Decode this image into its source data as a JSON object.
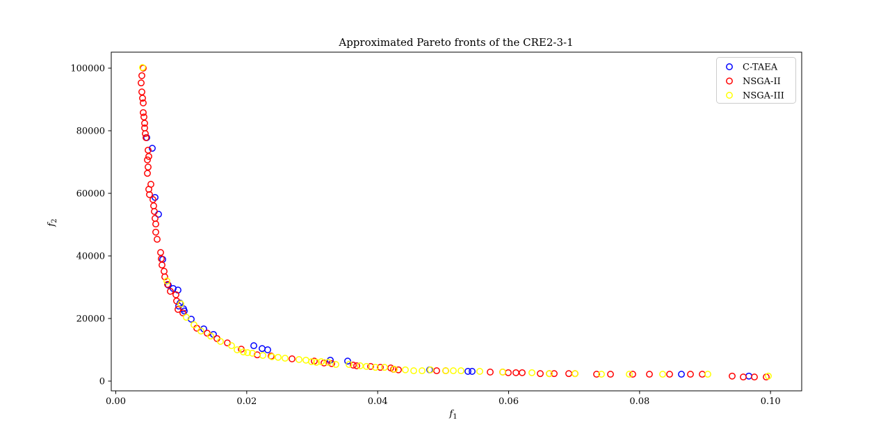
{
  "figure": {
    "title": "Approximated Pareto fronts of the CRE2-3-1",
    "x_axis": {
      "label_base": "f",
      "label_sub": "1",
      "ticks": [
        {
          "value": 0.0,
          "label": "0.00"
        },
        {
          "value": 0.02,
          "label": "0.02"
        },
        {
          "value": 0.04,
          "label": "0.04"
        },
        {
          "value": 0.06,
          "label": "0.06"
        },
        {
          "value": 0.08,
          "label": "0.08"
        },
        {
          "value": 0.1,
          "label": "0.10"
        }
      ]
    },
    "y_axis": {
      "label_base": "f",
      "label_sub": "2",
      "ticks": [
        {
          "value": 0,
          "label": "0"
        },
        {
          "value": 20000,
          "label": "20000"
        },
        {
          "value": 40000,
          "label": "40000"
        },
        {
          "value": 60000,
          "label": "60000"
        },
        {
          "value": 80000,
          "label": "80000"
        },
        {
          "value": 100000,
          "label": "100000"
        }
      ]
    },
    "legend": {
      "items": [
        {
          "label": "C-TAEA",
          "color": "#0000ff"
        },
        {
          "label": "NSGA-II",
          "color": "#ff0000"
        },
        {
          "label": "NSGA-III",
          "color": "#ffff00"
        }
      ]
    }
  },
  "chart_data": {
    "type": "scatter",
    "title": "Approximated Pareto fronts of the CRE2-3-1",
    "xlabel": "f1",
    "ylabel": "f2",
    "xlim": [
      -0.0007,
      0.1047
    ],
    "ylim": [
      -3100,
      105100
    ],
    "grid": false,
    "legend_position": "upper right",
    "marker": "o",
    "series": [
      {
        "name": "C-TAEA",
        "color": "#0000ff",
        "points": [
          [
            0.00473,
            77800
          ],
          [
            0.00557,
            74400
          ],
          [
            0.006,
            58700
          ],
          [
            0.00653,
            53300
          ],
          [
            0.00717,
            38900
          ],
          [
            0.00802,
            30700
          ],
          [
            0.00876,
            29600
          ],
          [
            0.0095,
            29100
          ],
          [
            0.00982,
            24900
          ],
          [
            0.00961,
            24000
          ],
          [
            0.01035,
            23100
          ],
          [
            0.01046,
            22400
          ],
          [
            0.01152,
            19800
          ],
          [
            0.01343,
            16700
          ],
          [
            0.01492,
            14900
          ],
          [
            0.02108,
            11300
          ],
          [
            0.02235,
            10400
          ],
          [
            0.0232,
            10000
          ],
          [
            0.03276,
            6700
          ],
          [
            0.03541,
            6400
          ],
          [
            0.04795,
            3600
          ],
          [
            0.05379,
            3100
          ],
          [
            0.05442,
            3100
          ],
          [
            0.08639,
            2200
          ],
          [
            0.09669,
            1600
          ]
        ]
      },
      {
        "name": "NSGA-II",
        "color": "#ff0000",
        "points": [
          [
            0.00419,
            100000
          ],
          [
            0.00398,
            97600
          ],
          [
            0.00388,
            95300
          ],
          [
            0.00398,
            92400
          ],
          [
            0.00409,
            90400
          ],
          [
            0.00419,
            88900
          ],
          [
            0.00419,
            85800
          ],
          [
            0.0043,
            84400
          ],
          [
            0.00441,
            82400
          ],
          [
            0.00441,
            80900
          ],
          [
            0.00451,
            79100
          ],
          [
            0.00462,
            77800
          ],
          [
            0.00494,
            73800
          ],
          [
            0.00504,
            71800
          ],
          [
            0.00483,
            70700
          ],
          [
            0.00494,
            68400
          ],
          [
            0.00483,
            66400
          ],
          [
            0.00536,
            62900
          ],
          [
            0.00504,
            61300
          ],
          [
            0.00515,
            59600
          ],
          [
            0.00568,
            58000
          ],
          [
            0.00579,
            56000
          ],
          [
            0.00589,
            54200
          ],
          [
            0.006,
            52000
          ],
          [
            0.00611,
            50200
          ],
          [
            0.00611,
            47600
          ],
          [
            0.00632,
            45300
          ],
          [
            0.00685,
            41100
          ],
          [
            0.00696,
            39100
          ],
          [
            0.00706,
            37100
          ],
          [
            0.00738,
            35100
          ],
          [
            0.00749,
            33300
          ],
          [
            0.00791,
            30900
          ],
          [
            0.00834,
            28700
          ],
          [
            0.00919,
            27600
          ],
          [
            0.00929,
            25600
          ],
          [
            0.0095,
            22900
          ],
          [
            0.01025,
            21800
          ],
          [
            0.01237,
            16900
          ],
          [
            0.01396,
            15300
          ],
          [
            0.01545,
            13600
          ],
          [
            0.01704,
            12200
          ],
          [
            0.01917,
            10200
          ],
          [
            0.02161,
            8400
          ],
          [
            0.02373,
            8000
          ],
          [
            0.02692,
            7100
          ],
          [
            0.03032,
            6400
          ],
          [
            0.0318,
            5800
          ],
          [
            0.03297,
            5600
          ],
          [
            0.03626,
            5100
          ],
          [
            0.03679,
            4900
          ],
          [
            0.03892,
            4700
          ],
          [
            0.04041,
            4400
          ],
          [
            0.042,
            4200
          ],
          [
            0.04242,
            3800
          ],
          [
            0.04317,
            3600
          ],
          [
            0.04901,
            3300
          ],
          [
            0.05039,
            3300
          ],
          [
            0.05718,
            2900
          ],
          [
            0.0591,
            2900
          ],
          [
            0.05994,
            2700
          ],
          [
            0.06111,
            2700
          ],
          [
            0.06207,
            2700
          ],
          [
            0.06483,
            2400
          ],
          [
            0.06621,
            2400
          ],
          [
            0.06695,
            2400
          ],
          [
            0.06918,
            2400
          ],
          [
            0.07014,
            2400
          ],
          [
            0.07343,
            2200
          ],
          [
            0.07555,
            2200
          ],
          [
            0.07895,
            2200
          ],
          [
            0.0815,
            2200
          ],
          [
            0.08458,
            2200
          ],
          [
            0.08777,
            2200
          ],
          [
            0.08957,
            2200
          ],
          [
            0.09414,
            1600
          ],
          [
            0.09584,
            1300
          ],
          [
            0.09754,
            1300
          ],
          [
            0.09934,
            1300
          ]
        ]
      },
      {
        "name": "NSGA-III",
        "color": "#ffff00",
        "points": [
          [
            0.00409,
            100200
          ],
          [
            0.00781,
            32000
          ],
          [
            0.00993,
            24700
          ],
          [
            0.01078,
            20400
          ],
          [
            0.01195,
            18000
          ],
          [
            0.01301,
            16000
          ],
          [
            0.0145,
            14400
          ],
          [
            0.01598,
            12700
          ],
          [
            0.01768,
            11300
          ],
          [
            0.01853,
            10000
          ],
          [
            0.01949,
            9300
          ],
          [
            0.02012,
            9100
          ],
          [
            0.02087,
            8900
          ],
          [
            0.02246,
            8200
          ],
          [
            0.02384,
            7800
          ],
          [
            0.0248,
            7600
          ],
          [
            0.02586,
            7300
          ],
          [
            0.02798,
            6900
          ],
          [
            0.02904,
            6700
          ],
          [
            0.02989,
            6200
          ],
          [
            0.03064,
            6000
          ],
          [
            0.03138,
            6200
          ],
          [
            0.03244,
            6000
          ],
          [
            0.03361,
            5300
          ],
          [
            0.03563,
            5300
          ],
          [
            0.03733,
            4900
          ],
          [
            0.03828,
            4700
          ],
          [
            0.03966,
            4400
          ],
          [
            0.04104,
            4400
          ],
          [
            0.04253,
            3800
          ],
          [
            0.04423,
            3600
          ],
          [
            0.0455,
            3300
          ],
          [
            0.04678,
            3300
          ],
          [
            0.04805,
            3600
          ],
          [
            0.05039,
            3300
          ],
          [
            0.05156,
            3300
          ],
          [
            0.05272,
            3300
          ],
          [
            0.05559,
            3100
          ],
          [
            0.0591,
            2900
          ],
          [
            0.06356,
            2700
          ],
          [
            0.06621,
            2400
          ],
          [
            0.07014,
            2400
          ],
          [
            0.07417,
            2200
          ],
          [
            0.07842,
            2200
          ],
          [
            0.08352,
            2200
          ],
          [
            0.09042,
            2200
          ],
          [
            0.09966,
            1600
          ]
        ]
      }
    ]
  }
}
